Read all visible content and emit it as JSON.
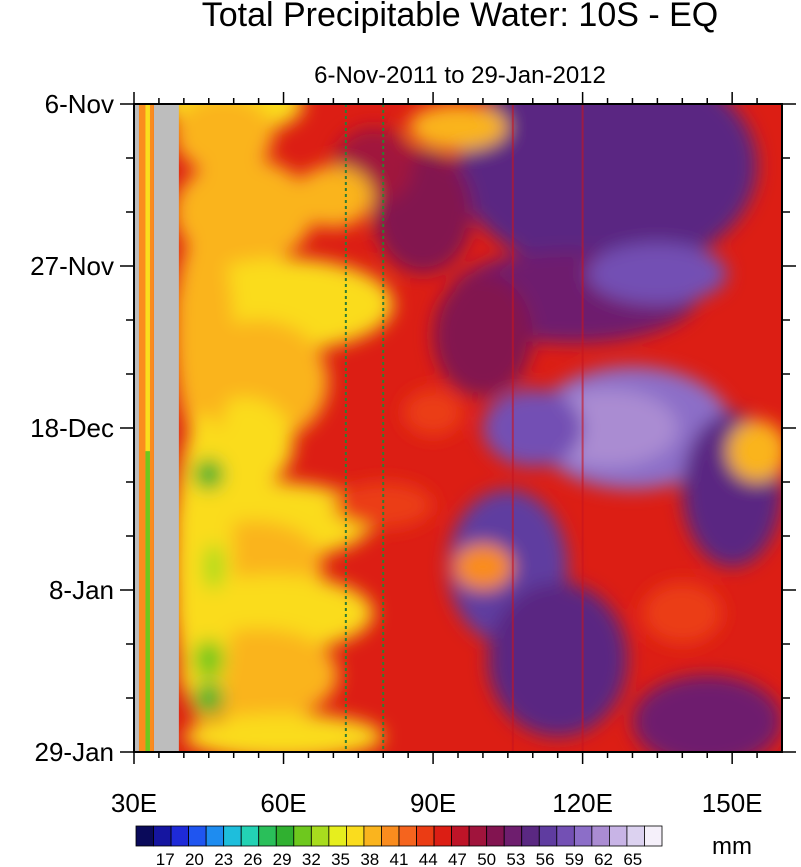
{
  "chart_data": {
    "type": "heatmap",
    "title": "Total Precipitable Water: 10S - EQ",
    "subtitle": "6-Nov-2011 to 29-Jan-2012",
    "x_ticks": [
      {
        "value": 30,
        "label": "30E"
      },
      {
        "value": 60,
        "label": "60E"
      },
      {
        "value": 90,
        "label": "90E"
      },
      {
        "value": 120,
        "label": "120E"
      },
      {
        "value": 150,
        "label": "150E"
      }
    ],
    "x_range": [
      30,
      160
    ],
    "y_ticks": [
      {
        "value": 0,
        "label": "6-Nov"
      },
      {
        "value": 21,
        "label": "27-Nov"
      },
      {
        "value": 42,
        "label": "18-Dec"
      },
      {
        "value": 63,
        "label": "8-Jan"
      },
      {
        "value": 84,
        "label": "29-Jan"
      }
    ],
    "y_range_days": [
      0,
      84
    ],
    "colorbar": {
      "labels": [
        17,
        20,
        23,
        26,
        29,
        32,
        35,
        38,
        41,
        44,
        47,
        50,
        53,
        56,
        59,
        62,
        65
      ],
      "unit": "mm",
      "colors": [
        "#0a0a5a",
        "#1515a0",
        "#1e2ad8",
        "#1f55f0",
        "#1e8cf0",
        "#1ebedc",
        "#23d2b4",
        "#2abf5a",
        "#30b030",
        "#6ec81e",
        "#a8dc1e",
        "#e6ee1e",
        "#fadc1e",
        "#fab41e",
        "#fa8c1e",
        "#f5641e",
        "#eb3c14",
        "#dc1e14",
        "#be1428",
        "#a0143c",
        "#821450",
        "#6e1e6e",
        "#5a2882",
        "#5f3ca0",
        "#7350b4",
        "#8c6ec8",
        "#aa8cd2",
        "#c8b4e6",
        "#dcd2f0",
        "#f5f0fa"
      ]
    },
    "land_mask": [
      {
        "from": 30,
        "to": 31
      },
      {
        "from": 34,
        "to": 39
      }
    ],
    "reference_lines_lon": [
      72.5,
      80
    ],
    "note_lines_lon": [
      106,
      120
    ]
  }
}
